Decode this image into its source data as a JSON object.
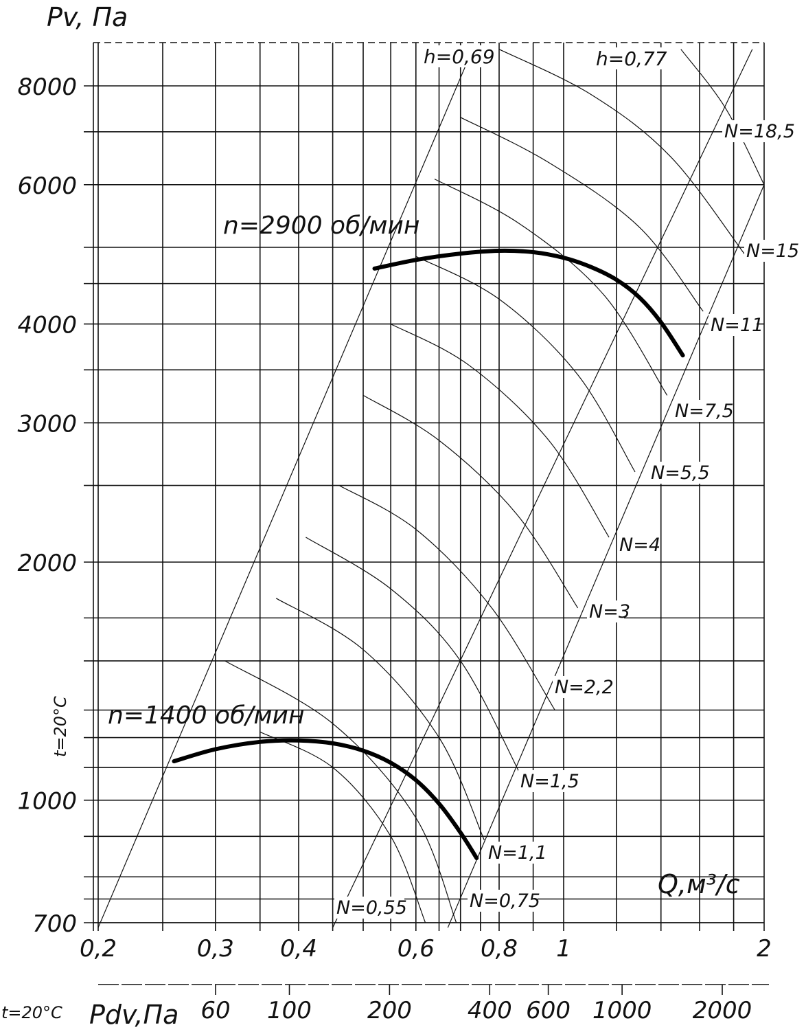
{
  "chart_data": {
    "type": "line",
    "title": "",
    "ylabel": "Pv, Па",
    "xlabel": "Q,м³/с",
    "x2label": "Pdv,Па",
    "temperature_label": "t=20°C",
    "y_scale": "log",
    "x_scale": "log",
    "ylim": [
      680,
      9000
    ],
    "xlim": [
      0.2,
      2
    ],
    "y_ticks": [
      {
        "value": 700,
        "label": "700"
      },
      {
        "value": 1000,
        "label": "1000"
      },
      {
        "value": 2000,
        "label": "2000"
      },
      {
        "value": 3000,
        "label": "3000"
      },
      {
        "value": 4000,
        "label": "4000"
      },
      {
        "value": 6000,
        "label": "6000"
      },
      {
        "value": 8000,
        "label": "8000"
      }
    ],
    "x_ticks": [
      {
        "value": 0.2,
        "label": "0,2"
      },
      {
        "value": 0.3,
        "label": "0,3"
      },
      {
        "value": 0.4,
        "label": "0,4"
      },
      {
        "value": 0.6,
        "label": "0,6"
      },
      {
        "value": 0.8,
        "label": "0,8"
      },
      {
        "value": 1,
        "label": "1"
      },
      {
        "value": 2,
        "label": "2"
      }
    ],
    "x2_ticks": [
      {
        "value": 60,
        "label": "60"
      },
      {
        "value": 100,
        "label": "100"
      },
      {
        "value": 200,
        "label": "200"
      },
      {
        "value": 400,
        "label": "400"
      },
      {
        "value": 600,
        "label": "600"
      },
      {
        "value": 1000,
        "label": "1000"
      },
      {
        "value": 2000,
        "label": "2000"
      }
    ],
    "series": [
      {
        "name": "n=2900 об/мин",
        "x": [
          0.52,
          0.6,
          0.7,
          0.8,
          0.9,
          1.0,
          1.1,
          1.2,
          1.3,
          1.4,
          1.51
        ],
        "y": [
          4700,
          4820,
          4910,
          4950,
          4930,
          4850,
          4720,
          4550,
          4320,
          4020,
          3650
        ]
      },
      {
        "name": "n=1400 об/мин",
        "x": [
          0.26,
          0.3,
          0.35,
          0.4,
          0.45,
          0.5,
          0.55,
          0.6,
          0.65,
          0.7,
          0.74
        ],
        "y": [
          1120,
          1160,
          1185,
          1190,
          1180,
          1155,
          1115,
          1060,
          990,
          910,
          845
        ]
      }
    ],
    "efficiency_lines": [
      {
        "label": "h=0,69",
        "x": [
          0.2,
          0.73
        ],
        "y": [
          690,
          8900
        ]
      },
      {
        "label": "h=0,77",
        "x": [
          0.45,
          1.92
        ],
        "y": [
          690,
          8900
        ]
      },
      {
        "label": "h=0,77",
        "x": [
          0.67,
          2.0
        ],
        "y": [
          690,
          6000
        ]
      }
    ],
    "power_curves": [
      {
        "label": "N=0,55",
        "x": [
          0.35,
          0.45,
          0.55,
          0.62
        ],
        "y": [
          1220,
          1100,
          900,
          700
        ]
      },
      {
        "label": "N=0,75",
        "x": [
          0.31,
          0.45,
          0.6,
          0.69
        ],
        "y": [
          1500,
          1250,
          950,
          700
        ]
      },
      {
        "label": "N=1,1",
        "x": [
          0.37,
          0.5,
          0.65,
          0.76
        ],
        "y": [
          1800,
          1550,
          1200,
          890
        ]
      },
      {
        "label": "N=1,5",
        "x": [
          0.41,
          0.55,
          0.7,
          0.86
        ],
        "y": [
          2150,
          1850,
          1500,
          1080
        ]
      },
      {
        "label": "N=2,2",
        "x": [
          0.46,
          0.6,
          0.78,
          0.97
        ],
        "y": [
          2500,
          2200,
          1750,
          1300
        ]
      },
      {
        "label": "N=3",
        "x": [
          0.5,
          0.65,
          0.85,
          1.05
        ],
        "y": [
          3250,
          2850,
          2300,
          1750
        ]
      },
      {
        "label": "N=4",
        "x": [
          0.55,
          0.72,
          0.95,
          1.17
        ],
        "y": [
          4000,
          3550,
          2850,
          2150
        ]
      },
      {
        "label": "N=5,5",
        "x": [
          0.6,
          0.8,
          1.05,
          1.28
        ],
        "y": [
          4870,
          4300,
          3450,
          2600
        ]
      },
      {
        "label": "N=7,5",
        "x": [
          0.64,
          0.86,
          1.15,
          1.43
        ],
        "y": [
          6100,
          5350,
          4350,
          3250
        ]
      },
      {
        "label": "N=11",
        "x": [
          0.7,
          0.95,
          1.3,
          1.62
        ],
        "y": [
          7300,
          6400,
          5300,
          4150
        ]
      },
      {
        "label": "N=15",
        "x": [
          0.8,
          1.1,
          1.45,
          1.87
        ],
        "y": [
          8900,
          7800,
          6500,
          4900
        ]
      },
      {
        "label": "N=18,5",
        "x": [
          1.5,
          1.75,
          2.0
        ],
        "y": [
          8900,
          7500,
          6000
        ]
      }
    ],
    "grid": true
  }
}
